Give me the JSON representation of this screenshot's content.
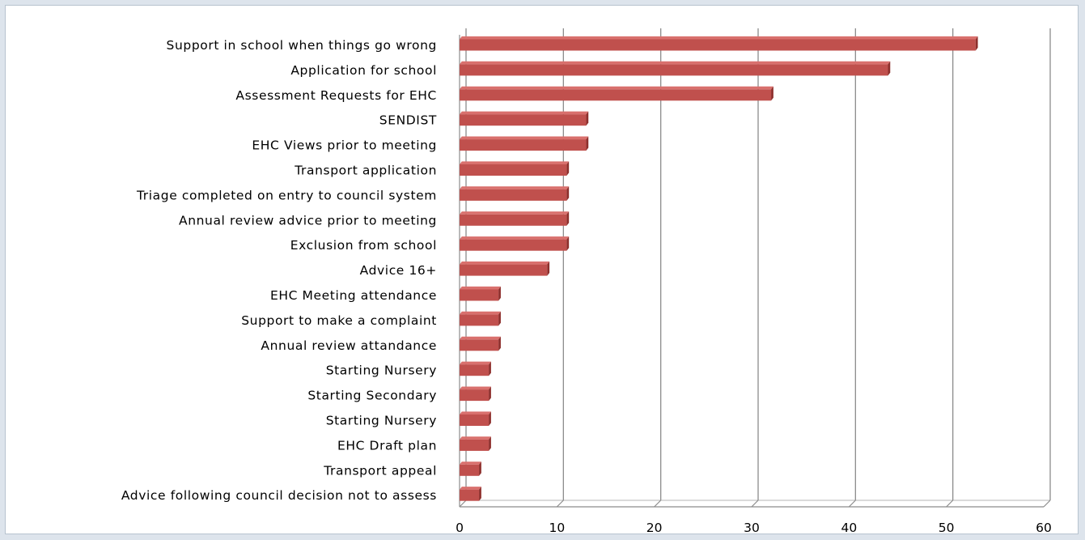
{
  "chart_data": {
    "type": "bar",
    "orientation": "horizontal",
    "style": "3d",
    "categories": [
      "Support in school when things go wrong",
      "Application for school",
      "Assessment Requests for EHC",
      "SENDIST",
      "EHC Views prior to meeting",
      "Transport application",
      "Triage completed on entry to council system",
      "Annual review advice prior to meeting",
      "Exclusion from school",
      "Advice 16+",
      "EHC Meeting attendance",
      "Support to make a complaint",
      "Annual review attandance",
      "Starting Nursery",
      "Starting Secondary",
      "Starting Nursery",
      "EHC Draft plan",
      "Transport appeal",
      "Advice following council decision not to assess"
    ],
    "values": [
      53,
      44,
      32,
      13,
      13,
      11,
      11,
      11,
      11,
      9,
      4,
      4,
      4,
      3,
      3,
      3,
      3,
      2,
      2
    ],
    "xlim": [
      0,
      60
    ],
    "xticks": [
      0,
      10,
      20,
      30,
      40,
      50,
      60
    ],
    "title": "",
    "xlabel": "",
    "ylabel": "",
    "grid": true,
    "legend": "none",
    "bar_color": "#c0504d",
    "bar_top_color": "#d9706d",
    "bar_side_color": "#8e2f2c",
    "grid_color": "#8c8c8c"
  }
}
